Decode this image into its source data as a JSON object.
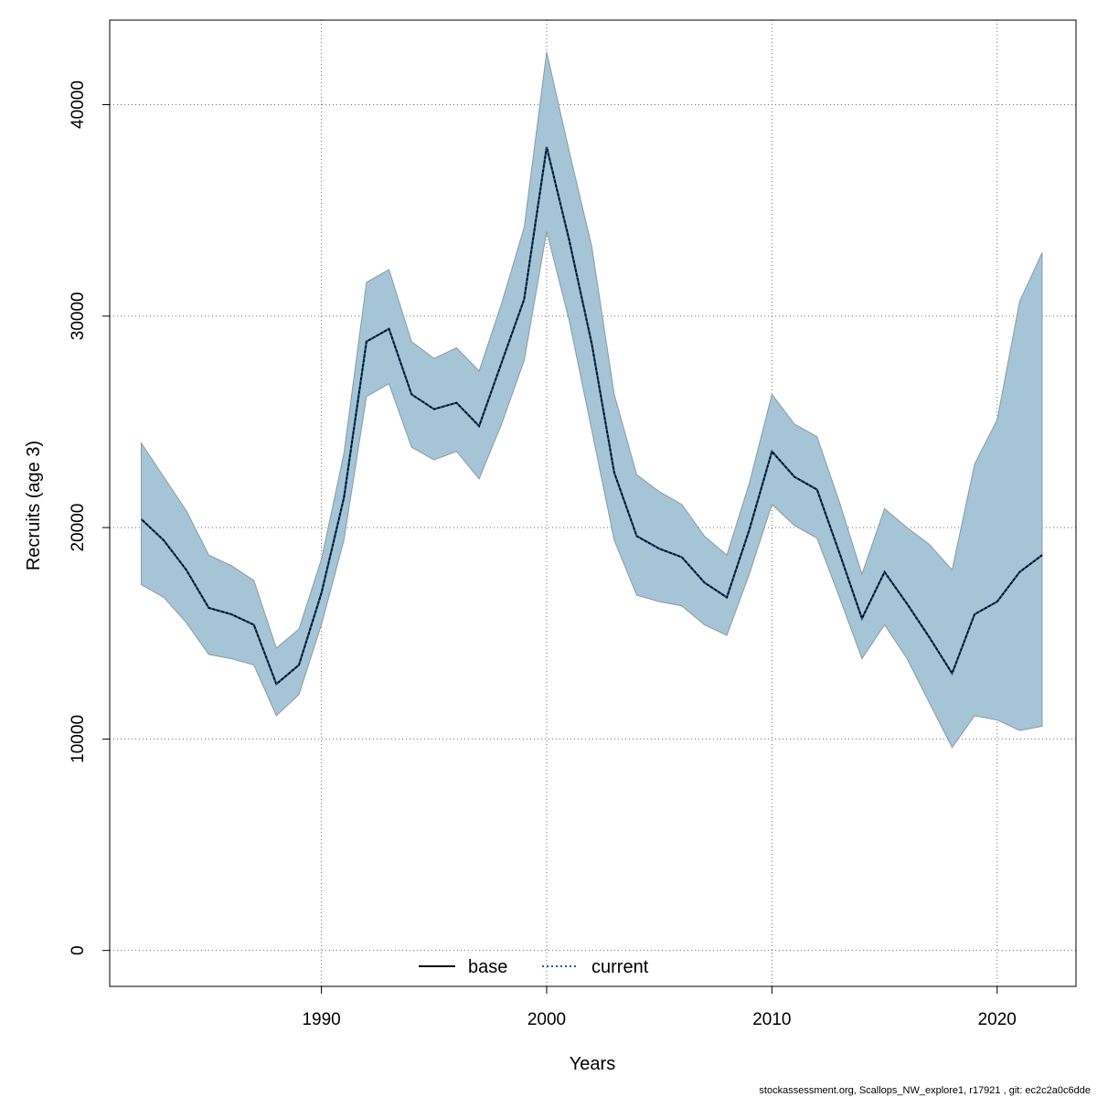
{
  "chart_data": {
    "type": "area",
    "xlabel": "Years",
    "ylabel": "Recruits (age 3)",
    "xlim": [
      1980.6,
      2023.5
    ],
    "ylim": [
      -1700,
      44000
    ],
    "x_ticks": [
      1990,
      2000,
      2010,
      2020
    ],
    "y_ticks": [
      0,
      10000,
      20000,
      30000,
      40000
    ],
    "x_tick_labels": [
      "1990",
      "2000",
      "2010",
      "2020"
    ],
    "y_tick_labels": [
      "0",
      "10000",
      "20000",
      "30000",
      "40000"
    ],
    "grid": true,
    "legend_position": "bottom",
    "band_color": "#a5c4d5",
    "band_edge_color": "#8a9aa4",
    "x": [
      1982,
      1983,
      1984,
      1985,
      1986,
      1987,
      1988,
      1989,
      1990,
      1991,
      1992,
      1993,
      1994,
      1995,
      1996,
      1997,
      1998,
      1999,
      2000,
      2001,
      2002,
      2003,
      2004,
      2005,
      2006,
      2007,
      2008,
      2009,
      2010,
      2011,
      2012,
      2013,
      2014,
      2015,
      2016,
      2017,
      2018,
      2019,
      2020,
      2021,
      2022
    ],
    "band_upper": [
      24000,
      22400,
      20800,
      18700,
      18200,
      17500,
      14300,
      15200,
      18500,
      23500,
      31600,
      32200,
      28800,
      28000,
      28500,
      27400,
      30600,
      34200,
      42500,
      37800,
      33300,
      26300,
      22500,
      21700,
      21100,
      19600,
      18700,
      22100,
      26300,
      24900,
      24300,
      21200,
      17800,
      20900,
      20000,
      19200,
      18000,
      23000,
      25100,
      30700,
      33000
    ],
    "band_lower": [
      17300,
      16700,
      15500,
      14000,
      13800,
      13500,
      11100,
      12100,
      15400,
      19400,
      26200,
      26800,
      23800,
      23200,
      23600,
      22300,
      24900,
      27900,
      34000,
      29800,
      24600,
      19400,
      16800,
      16500,
      16300,
      15400,
      14900,
      17800,
      21100,
      20100,
      19500,
      16700,
      13800,
      15400,
      13800,
      11700,
      9600,
      11100,
      10900,
      10400,
      10600
    ],
    "series": [
      {
        "name": "base",
        "line_style": "solid",
        "color": "#000000",
        "values": [
          20400,
          19400,
          18000,
          16200,
          15900,
          15400,
          12600,
          13500,
          16900,
          21400,
          28800,
          29400,
          26300,
          25600,
          25900,
          24800,
          27800,
          30800,
          38000,
          33600,
          28700,
          22600,
          19600,
          19000,
          18600,
          17400,
          16700,
          19900,
          23600,
          22400,
          21800,
          18800,
          15700,
          17900,
          16400,
          14800,
          13100,
          15900,
          16500,
          17900,
          18700
        ]
      },
      {
        "name": "current",
        "line_style": "dotted",
        "color": "#0b5ea8",
        "values": [
          20400,
          19400,
          18000,
          16200,
          15900,
          15400,
          12600,
          13500,
          16900,
          21400,
          28800,
          29400,
          26300,
          25600,
          25900,
          24800,
          27800,
          30800,
          38000,
          33600,
          28700,
          22600,
          19600,
          19000,
          18600,
          17400,
          16700,
          19900,
          23600,
          22400,
          21800,
          18800,
          15700,
          17900,
          16400,
          14800,
          13100,
          15900,
          16500,
          17900,
          18700
        ]
      }
    ]
  },
  "footer_text": "stockassessment.org, Scallops_NW_explore1, r17921 , git: ec2c2a0c6dde"
}
